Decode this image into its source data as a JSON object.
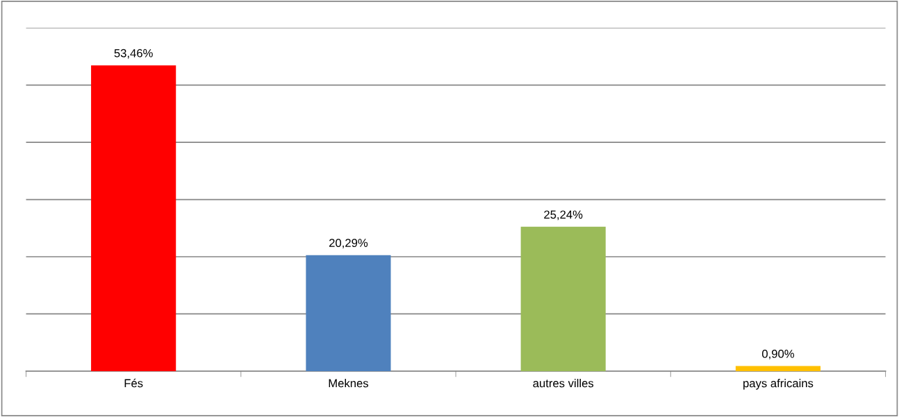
{
  "chart_data": {
    "type": "bar",
    "categories": [
      "Fés",
      "Meknes",
      "autres villes",
      "pays africains"
    ],
    "values": [
      53.46,
      20.29,
      25.24,
      0.9
    ],
    "colors": [
      "#ff0000",
      "#4f81bd",
      "#9bbb59",
      "#ffc000"
    ],
    "value_labels": [
      "53,46%",
      "20,29%",
      "25,24%",
      "0,90%"
    ],
    "ylim": [
      0,
      60
    ],
    "yticks": [
      {
        "value": 0,
        "label": null
      },
      {
        "value": 10,
        "label": null
      },
      {
        "value": 20,
        "label": null
      },
      {
        "value": 30,
        "label": null
      },
      {
        "value": 40,
        "label": null
      },
      {
        "value": 50,
        "label": null
      },
      {
        "value": 60,
        "label": null
      }
    ],
    "tick_labels": "x",
    "grid": "y",
    "legend": false
  }
}
